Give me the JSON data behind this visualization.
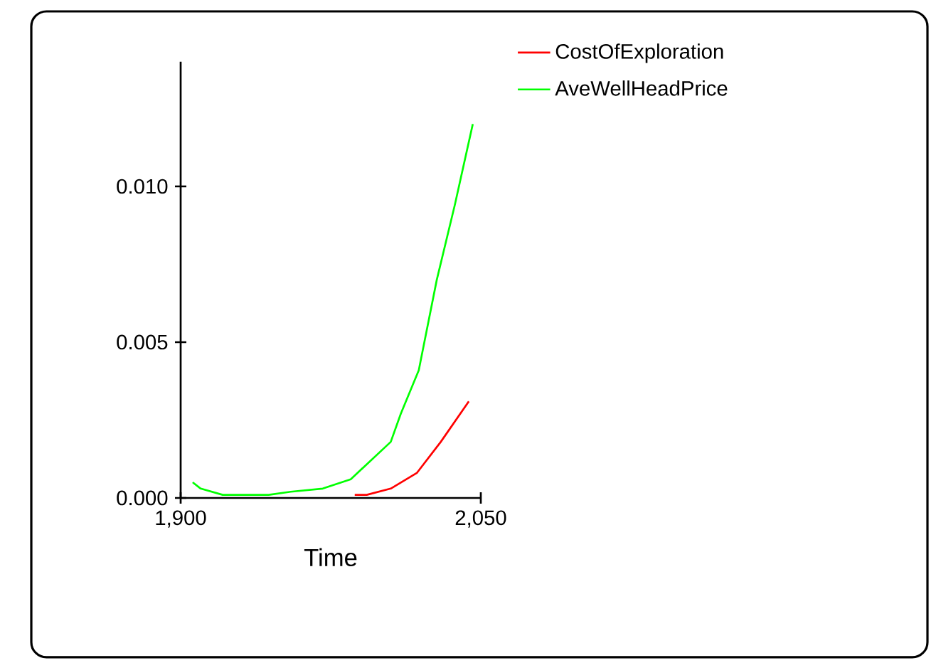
{
  "chart_data": {
    "type": "line",
    "xlabel": "Time",
    "xlim": [
      1900,
      2050
    ],
    "ylim": [
      0,
      0.014
    ],
    "xticks": [
      {
        "value": 1900,
        "label": "1,900"
      },
      {
        "value": 2050,
        "label": "2,050"
      }
    ],
    "yticks": [
      {
        "value": 0,
        "label": "0.000"
      },
      {
        "value": 0.005,
        "label": "0.005"
      },
      {
        "value": 0.01,
        "label": "0.010"
      }
    ],
    "legend": "top right",
    "series": [
      {
        "name": "CostOfExploration",
        "color": "#ff0000",
        "x": [
          1987,
          1993,
          2005,
          2018,
          2030,
          2044
        ],
        "values": [
          0.0001,
          0.0001,
          0.0003,
          0.0008,
          0.0018,
          0.0031
        ]
      },
      {
        "name": "AveWellHeadPrice",
        "color": "#00ff00",
        "x": [
          1906,
          1910,
          1921,
          1944,
          1955,
          1971,
          1985,
          2005,
          2010,
          2019,
          2028,
          2037,
          2046
        ],
        "values": [
          0.0005,
          0.0003,
          0.0001,
          0.0001,
          0.0002,
          0.0003,
          0.0006,
          0.0018,
          0.0027,
          0.0041,
          0.007,
          0.0094,
          0.012
        ]
      }
    ]
  }
}
